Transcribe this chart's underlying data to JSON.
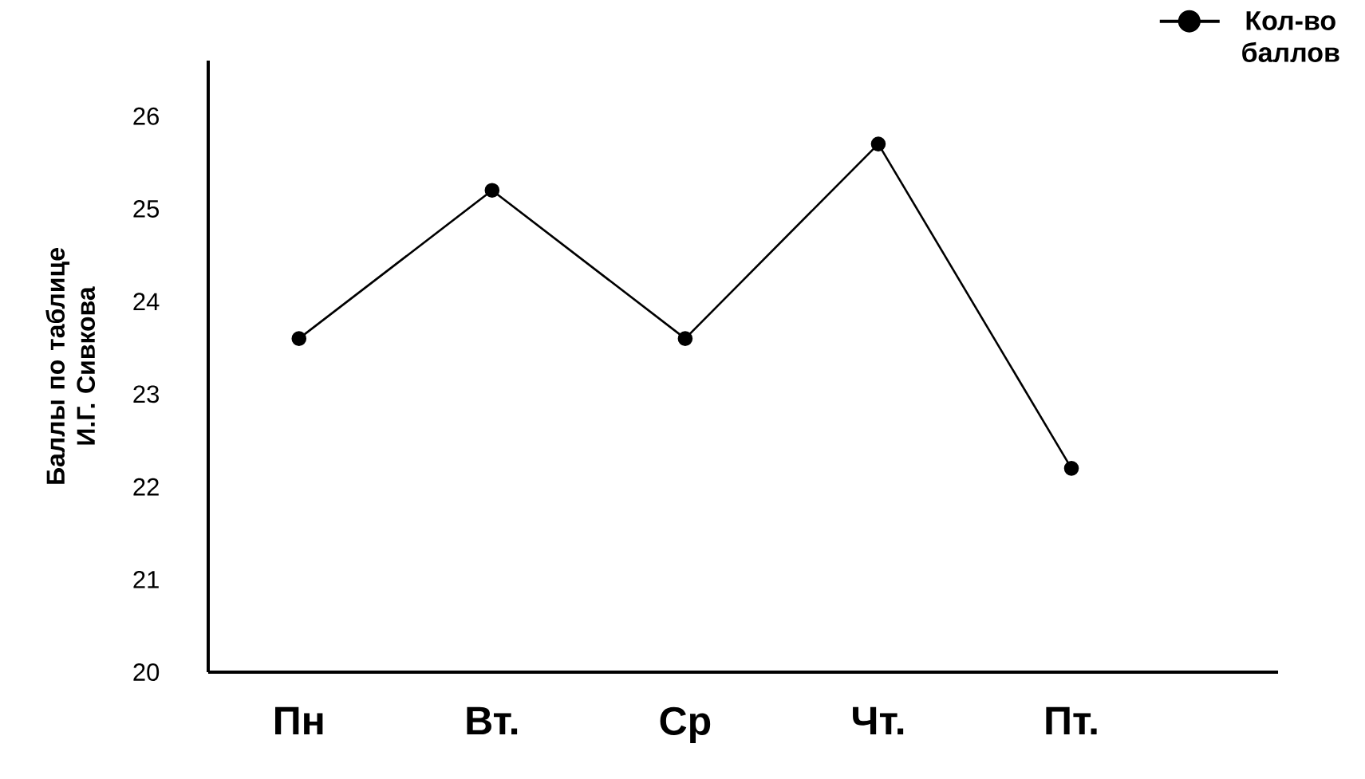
{
  "chart_data": {
    "type": "line",
    "categories": [
      "Пн",
      "Вт.",
      "Ср",
      "Чт.",
      "Пт."
    ],
    "series": [
      {
        "name": "Кол-во баллов",
        "color": "#000000",
        "values": [
          23.6,
          25.2,
          23.6,
          25.7,
          22.2
        ]
      }
    ],
    "ylabel": "Баллы по таблице И.Г. Сивкова",
    "ylim": [
      20,
      26.6
    ],
    "yticks": [
      20,
      21,
      22,
      23,
      24,
      25,
      26
    ],
    "legend": "top right",
    "marker": "circle",
    "line_style": "solid"
  }
}
